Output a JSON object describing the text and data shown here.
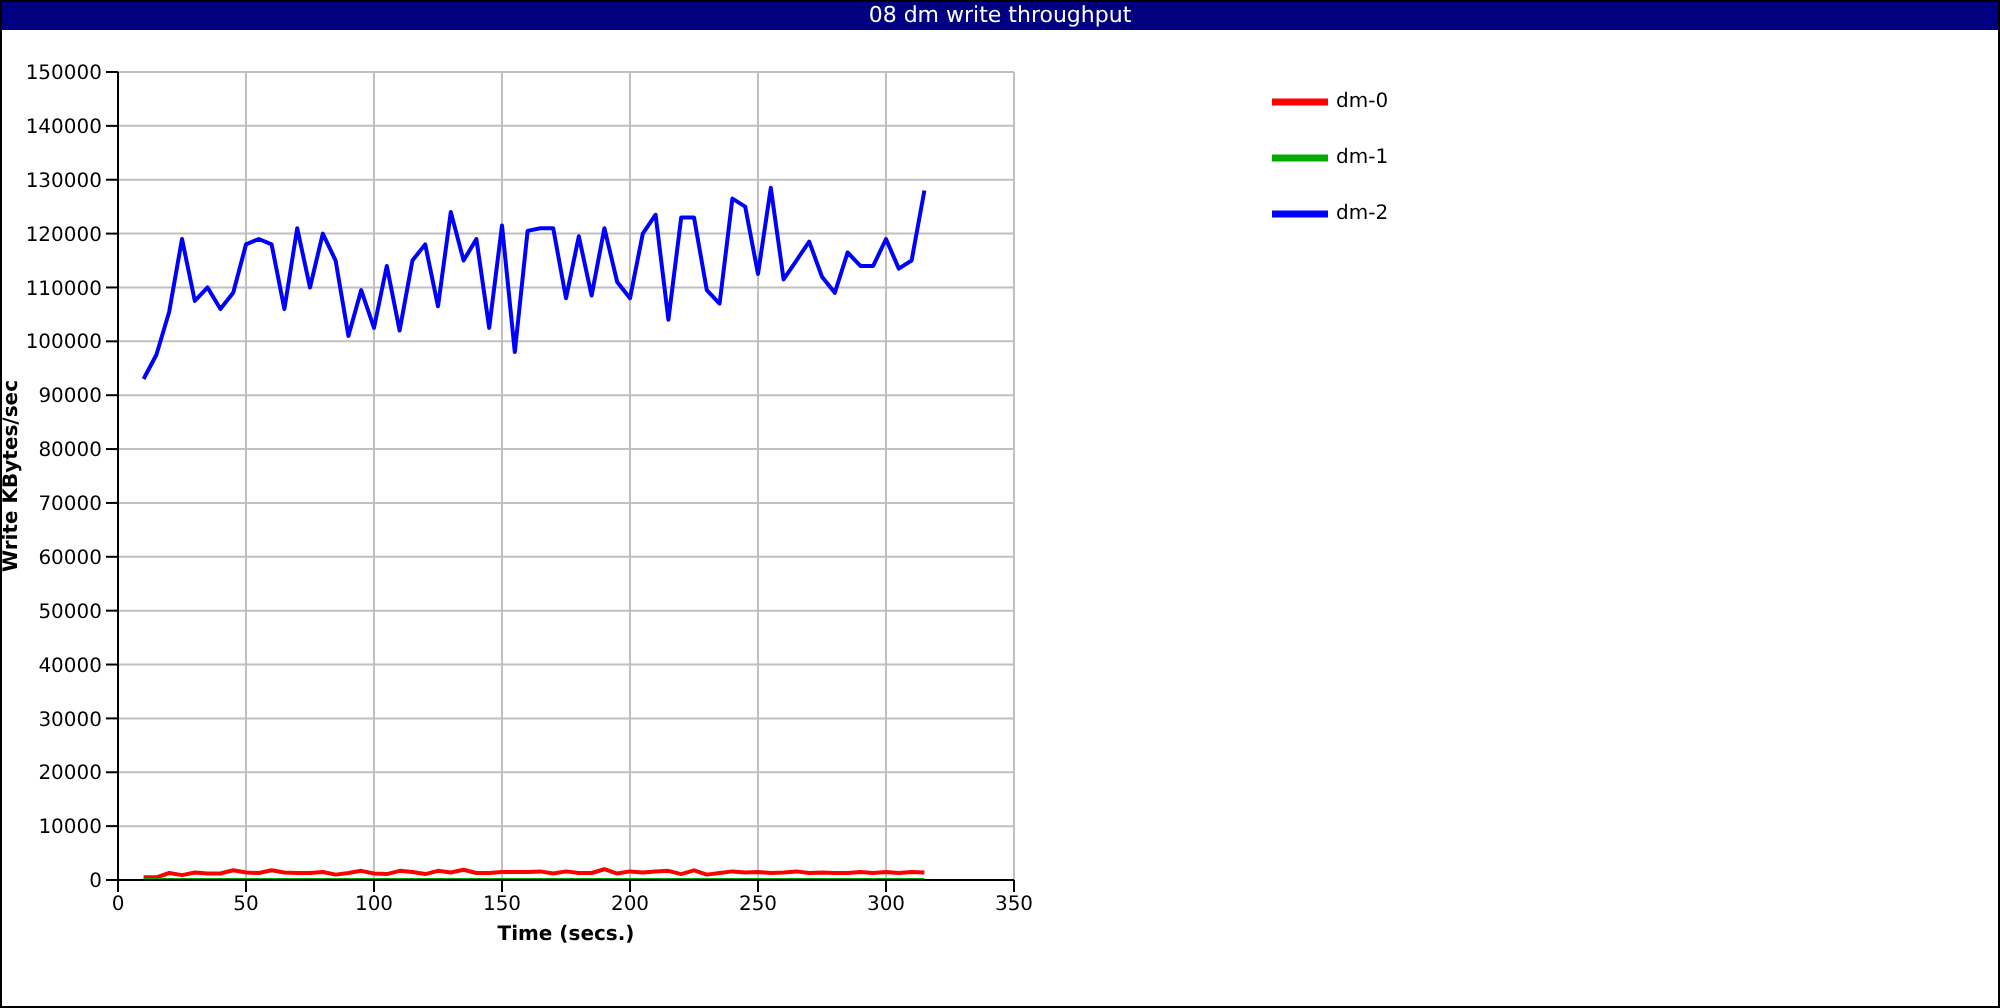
{
  "chart_data": {
    "type": "line",
    "title": "08 dm write throughput",
    "xlabel": "Time (secs.)",
    "ylabel": "Write KBytes/sec",
    "x": [
      10,
      15,
      20,
      25,
      30,
      35,
      40,
      45,
      50,
      55,
      60,
      65,
      70,
      75,
      80,
      85,
      90,
      95,
      100,
      105,
      110,
      115,
      120,
      125,
      130,
      135,
      140,
      145,
      150,
      155,
      160,
      165,
      170,
      175,
      180,
      185,
      190,
      195,
      200,
      205,
      210,
      215,
      220,
      225,
      230,
      235,
      240,
      245,
      250,
      255,
      260,
      265,
      270,
      275,
      280,
      285,
      290,
      295,
      300,
      305,
      310,
      315
    ],
    "series": [
      {
        "name": "dm-0",
        "color": "#ff0000",
        "values": [
          500,
          500,
          1300,
          900,
          1400,
          1200,
          1200,
          1800,
          1400,
          1300,
          1800,
          1400,
          1300,
          1300,
          1500,
          1000,
          1300,
          1700,
          1200,
          1100,
          1700,
          1500,
          1100,
          1700,
          1400,
          1900,
          1300,
          1300,
          1500,
          1500,
          1500,
          1600,
          1200,
          1600,
          1300,
          1300,
          2000,
          1200,
          1600,
          1400,
          1600,
          1700,
          1100,
          1800,
          1000,
          1300,
          1600,
          1400,
          1500,
          1300,
          1400,
          1600,
          1300,
          1400,
          1300,
          1300,
          1500,
          1300,
          1500,
          1300,
          1500,
          1400
        ]
      },
      {
        "name": "dm-1",
        "color": "#00aa00",
        "values": [
          0,
          0,
          0,
          0,
          0,
          0,
          0,
          0,
          0,
          0,
          0,
          0,
          0,
          0,
          0,
          0,
          0,
          0,
          0,
          0,
          0,
          0,
          0,
          0,
          0,
          0,
          0,
          0,
          0,
          0,
          0,
          0,
          0,
          0,
          0,
          0,
          0,
          0,
          0,
          0,
          0,
          0,
          0,
          0,
          0,
          0,
          0,
          0,
          0,
          0,
          0,
          0,
          0,
          0,
          0,
          0,
          0,
          0,
          0,
          0,
          0,
          0
        ]
      },
      {
        "name": "dm-2",
        "color": "#0000ff",
        "values": [
          93000,
          97500,
          105500,
          119000,
          107500,
          110000,
          106000,
          109000,
          118000,
          119000,
          118000,
          106000,
          121000,
          110000,
          120000,
          115000,
          101000,
          109500,
          102500,
          114000,
          102000,
          115000,
          118000,
          106500,
          124000,
          115000,
          119000,
          102500,
          121500,
          98000,
          120500,
          121000,
          121000,
          108000,
          119500,
          108500,
          121000,
          111000,
          108000,
          120000,
          123500,
          104000,
          123000,
          123000,
          109500,
          107000,
          126500,
          125000,
          112500,
          128500,
          111500,
          115000,
          118500,
          112000,
          109000,
          116500,
          114000,
          114000,
          119000,
          113500,
          115000,
          128000
        ]
      }
    ],
    "xlim": [
      0,
      350
    ],
    "xticks": [
      0,
      50,
      100,
      150,
      200,
      250,
      300,
      350
    ],
    "ylim": [
      0,
      150000
    ],
    "yticks": [
      0,
      10000,
      20000,
      30000,
      40000,
      50000,
      60000,
      70000,
      80000,
      90000,
      100000,
      110000,
      120000,
      130000,
      140000,
      150000
    ],
    "grid": true,
    "legend": "top right",
    "marker": "none",
    "line_style": "solid"
  }
}
